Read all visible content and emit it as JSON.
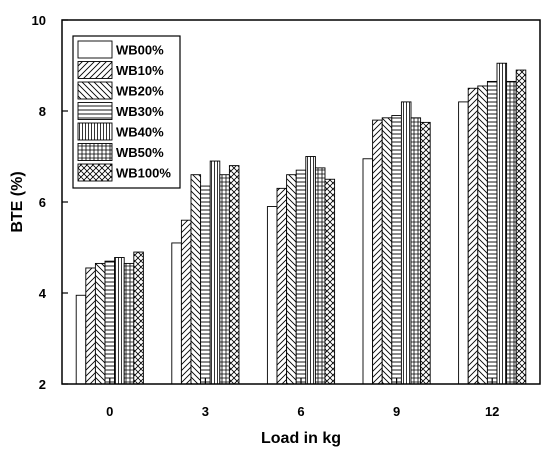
{
  "chart_data": {
    "type": "bar",
    "xlabel": "Load in kg",
    "ylabel": "BTE (%)",
    "categories": [
      "0",
      "3",
      "6",
      "9",
      "12"
    ],
    "ylim": [
      2,
      10
    ],
    "yticks": [
      2,
      4,
      6,
      8,
      10
    ],
    "grid": false,
    "legend_position": "top-left",
    "series": [
      {
        "name": "WB00%",
        "pattern": "none",
        "values": [
          3.95,
          5.1,
          5.9,
          6.95,
          8.2
        ]
      },
      {
        "name": "WB10%",
        "pattern": "diag-right",
        "values": [
          4.55,
          5.6,
          6.3,
          7.8,
          8.5
        ]
      },
      {
        "name": "WB20%",
        "pattern": "diag-left",
        "values": [
          4.65,
          6.6,
          6.6,
          7.85,
          8.55
        ]
      },
      {
        "name": "WB30%",
        "pattern": "horizontal",
        "values": [
          4.7,
          6.35,
          6.7,
          7.9,
          8.65
        ]
      },
      {
        "name": "WB40%",
        "pattern": "vertical",
        "values": [
          4.78,
          6.9,
          7.0,
          8.2,
          9.05
        ]
      },
      {
        "name": "WB50%",
        "pattern": "grid",
        "values": [
          4.65,
          6.6,
          6.75,
          7.85,
          8.65
        ]
      },
      {
        "name": "WB100%",
        "pattern": "crosshatch",
        "values": [
          4.9,
          6.8,
          6.5,
          7.75,
          8.9
        ]
      }
    ]
  }
}
